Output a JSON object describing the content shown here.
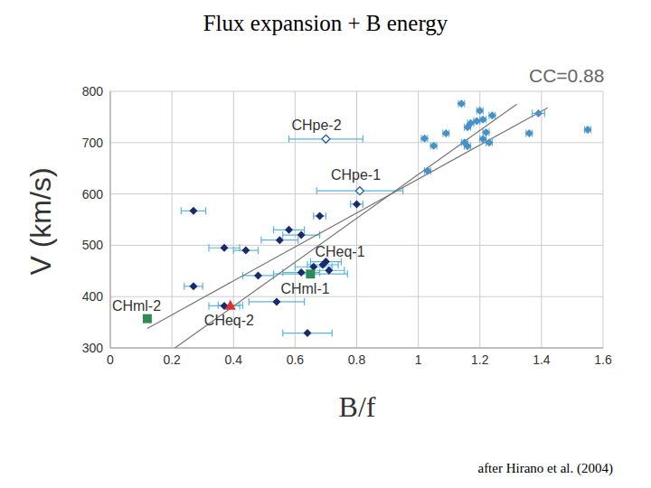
{
  "chart_data": {
    "type": "scatter",
    "title": "Flux expansion + B energy",
    "x_label": "B/f",
    "y_label": "V (km/s)",
    "annotation": "CC=0.88",
    "footnote": "after Hirano et al. (2004)",
    "xlim": [
      0,
      1.6
    ],
    "xticks": [
      0,
      0.2,
      0.4,
      0.6,
      0.8,
      1,
      1.2,
      1.4,
      1.6
    ],
    "ylim": [
      300,
      800
    ],
    "yticks": [
      300,
      400,
      500,
      600,
      700,
      800
    ],
    "grid": true,
    "error_color": "#5bb6d6",
    "series": [
      {
        "marker": "diamond",
        "color": "#1a2a6c",
        "x": [
          0.27,
          0.37,
          0.44,
          0.55,
          0.58,
          0.62,
          0.68,
          0.8,
          0.27,
          0.48,
          0.54,
          0.37,
          0.64,
          0.69,
          0.71,
          0.62,
          0.66
        ],
        "values": [
          567,
          495,
          490,
          510,
          530,
          520,
          557,
          580,
          420,
          441,
          390,
          382,
          329,
          462,
          451,
          447,
          458
        ],
        "x_error": [
          0.04,
          0.05,
          0.04,
          0.06,
          0.05,
          0.06,
          0.02,
          0.02,
          0.03,
          0.05,
          0.09,
          0.05,
          0.08,
          0.05,
          0.05,
          0.06,
          0.06
        ]
      },
      {
        "marker": "diamond",
        "color": "#4a90c8",
        "x": [
          1.14,
          1.2,
          1.39,
          1.24,
          1.21,
          1.19,
          1.17,
          1.16,
          1.22,
          1.09,
          1.36,
          1.55,
          1.02,
          1.21,
          1.23,
          1.15,
          1.16,
          1.05,
          1.03
        ],
        "values": [
          776,
          762,
          757,
          753,
          745,
          742,
          738,
          730,
          720,
          718,
          718,
          725,
          708,
          707,
          700,
          700,
          693,
          694,
          645
        ],
        "x_error": [
          0.01,
          0.01,
          0.02,
          0.01,
          0.01,
          0.01,
          0.01,
          0.01,
          0.01,
          0.01,
          0.01,
          0.01,
          0.01,
          0.01,
          0.01,
          0.01,
          0.01,
          0.01,
          0.01
        ]
      },
      {
        "marker": "diamond-open",
        "color": "#1f5fa8",
        "x": [
          0.7,
          0.81
        ],
        "values": [
          707,
          606
        ],
        "x_error": [
          0.12,
          0.14
        ],
        "labels": [
          "CHpe-2",
          "CHpe-1"
        ]
      },
      {
        "marker": "diamond",
        "color": "#1a2a6c",
        "x": [
          0.7
        ],
        "values": [
          468
        ],
        "x_error": [
          0.05
        ],
        "labels": [
          "CHeq-1"
        ]
      },
      {
        "marker": "square",
        "color": "#2e8b57",
        "x": [
          0.65,
          0.12
        ],
        "values": [
          444,
          357
        ],
        "x_error": [
          0.12,
          0.01
        ],
        "labels": [
          "CHml-1",
          "CHml-2"
        ]
      },
      {
        "marker": "triangle",
        "color": "#e03030",
        "x": [
          0.39
        ],
        "values": [
          383
        ],
        "x_error": [
          0.04
        ],
        "labels": [
          "CHeq-2"
        ]
      }
    ],
    "lines": [
      {
        "color": "#777777",
        "x": [
          0.12,
          1.42
        ],
        "values": [
          338,
          768
        ]
      },
      {
        "color": "#777777",
        "x": [
          0.21,
          1.32
        ],
        "values": [
          300,
          775
        ]
      }
    ]
  }
}
